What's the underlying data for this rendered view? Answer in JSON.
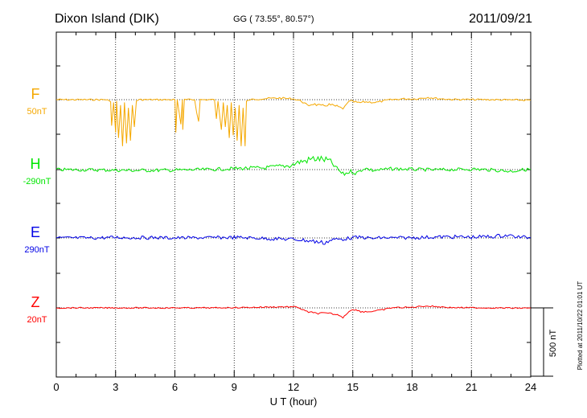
{
  "header": {
    "station": "Dixon Island (DIK)",
    "coords": "GG ( 73.55°,  80.57°)",
    "date": "2011/09/21"
  },
  "footer": {
    "plotted": "Plotted at 2011/10/22 01:01 UT"
  },
  "chart_data": {
    "type": "line",
    "xlabel": "U T (hour)",
    "xlim": [
      0,
      24
    ],
    "xticks": [
      "0",
      "3",
      "6",
      "9",
      "12",
      "15",
      "18",
      "21",
      "24"
    ],
    "scale_label": "500 nT",
    "scale_nT": 500,
    "grid": true,
    "series": [
      {
        "name": "F",
        "baseline_label": "50nT",
        "color": "#f5a800",
        "points": [
          [
            0,
            0
          ],
          [
            2.6,
            0
          ],
          [
            2.75,
            -8
          ],
          [
            2.8,
            -95
          ],
          [
            2.9,
            -10
          ],
          [
            3.0,
            -120
          ],
          [
            3.05,
            -5
          ],
          [
            3.15,
            -140
          ],
          [
            3.25,
            -20
          ],
          [
            3.35,
            -170
          ],
          [
            3.45,
            -10
          ],
          [
            3.55,
            -160
          ],
          [
            3.65,
            -30
          ],
          [
            3.75,
            -150
          ],
          [
            3.85,
            -20
          ],
          [
            3.95,
            -100
          ],
          [
            4.05,
            -5
          ],
          [
            4.2,
            0
          ],
          [
            6.0,
            0
          ],
          [
            6.05,
            -120
          ],
          [
            6.12,
            0
          ],
          [
            6.3,
            -90
          ],
          [
            6.38,
            0
          ],
          [
            6.4,
            -110
          ],
          [
            6.48,
            0
          ],
          [
            7.0,
            0
          ],
          [
            7.2,
            -80
          ],
          [
            7.28,
            0
          ],
          [
            8.0,
            0
          ],
          [
            8.1,
            -70
          ],
          [
            8.18,
            -5
          ],
          [
            8.35,
            -110
          ],
          [
            8.45,
            -10
          ],
          [
            8.55,
            -100
          ],
          [
            8.65,
            -20
          ],
          [
            8.75,
            -140
          ],
          [
            8.85,
            -10
          ],
          [
            8.95,
            -130
          ],
          [
            9.05,
            -30
          ],
          [
            9.15,
            -150
          ],
          [
            9.25,
            -20
          ],
          [
            9.35,
            -170
          ],
          [
            9.45,
            -30
          ],
          [
            9.55,
            -170
          ],
          [
            9.62,
            -5
          ],
          [
            9.8,
            0
          ],
          [
            10.5,
            4
          ],
          [
            11.3,
            6
          ],
          [
            12.0,
            3
          ],
          [
            12.4,
            -5
          ],
          [
            12.7,
            -22
          ],
          [
            13.0,
            -15
          ],
          [
            13.4,
            -24
          ],
          [
            13.8,
            -18
          ],
          [
            14.2,
            -25
          ],
          [
            14.5,
            -34
          ],
          [
            14.7,
            -12
          ],
          [
            14.9,
            -5
          ],
          [
            15.3,
            -12
          ],
          [
            15.6,
            -8
          ],
          [
            16.2,
            -10
          ],
          [
            16.8,
            -1
          ],
          [
            17.5,
            3
          ],
          [
            18.2,
            3
          ],
          [
            18.8,
            9
          ],
          [
            19.3,
            4
          ],
          [
            20,
            1
          ],
          [
            22,
            0
          ],
          [
            24,
            -2
          ]
        ]
      },
      {
        "name": "H",
        "baseline_label": "-290nT",
        "color": "#00e600",
        "points": [
          [
            0,
            0
          ],
          [
            2,
            -1
          ],
          [
            4,
            -3
          ],
          [
            6,
            -2
          ],
          [
            8,
            1
          ],
          [
            9.5,
            5
          ],
          [
            10.5,
            6
          ],
          [
            11.3,
            12
          ],
          [
            11.8,
            14
          ],
          [
            12.3,
            28
          ],
          [
            12.6,
            32
          ],
          [
            13,
            40
          ],
          [
            13.4,
            38
          ],
          [
            13.8,
            33
          ],
          [
            14.2,
            4
          ],
          [
            14.5,
            -18
          ],
          [
            14.9,
            -6
          ],
          [
            15.2,
            -13
          ],
          [
            15.6,
            6
          ],
          [
            16.0,
            -3
          ],
          [
            17,
            3
          ],
          [
            18,
            1
          ],
          [
            19,
            -1
          ],
          [
            20,
            0
          ],
          [
            21,
            2
          ],
          [
            22,
            -1
          ],
          [
            23,
            -6
          ],
          [
            23.5,
            -1
          ],
          [
            24,
            1
          ]
        ]
      },
      {
        "name": "E",
        "baseline_label": "290nT",
        "color": "#0000e6",
        "points": [
          [
            0,
            0
          ],
          [
            2,
            0
          ],
          [
            3,
            2
          ],
          [
            4,
            1
          ],
          [
            5,
            1
          ],
          [
            6,
            0
          ],
          [
            8,
            1
          ],
          [
            9,
            2
          ],
          [
            10,
            0
          ],
          [
            11,
            -3
          ],
          [
            12,
            -5
          ],
          [
            12.5,
            -8
          ],
          [
            13,
            -12
          ],
          [
            13.5,
            -18
          ],
          [
            14,
            -6
          ],
          [
            14.5,
            -4
          ],
          [
            15,
            1
          ],
          [
            15.5,
            2
          ],
          [
            16,
            -2
          ],
          [
            16.5,
            1
          ],
          [
            17,
            0
          ],
          [
            18,
            1
          ],
          [
            19,
            3
          ],
          [
            20,
            4
          ],
          [
            21,
            3
          ],
          [
            22,
            5
          ],
          [
            22.8,
            10
          ],
          [
            23.3,
            4
          ],
          [
            24,
            1
          ]
        ]
      },
      {
        "name": "Z",
        "baseline_label": "20nT",
        "color": "#ff0000",
        "points": [
          [
            0,
            0
          ],
          [
            8,
            0
          ],
          [
            10,
            2
          ],
          [
            11.5,
            4
          ],
          [
            12.2,
            3
          ],
          [
            12.6,
            -12
          ],
          [
            13,
            -19
          ],
          [
            13.5,
            -20
          ],
          [
            14,
            -22
          ],
          [
            14.3,
            -28
          ],
          [
            14.5,
            -33
          ],
          [
            14.8,
            -14
          ],
          [
            15,
            -5
          ],
          [
            15.4,
            -13
          ],
          [
            15.8,
            -14
          ],
          [
            16.4,
            -9
          ],
          [
            17,
            1
          ],
          [
            18,
            2
          ],
          [
            18.6,
            7
          ],
          [
            19.2,
            5
          ],
          [
            20,
            1
          ],
          [
            22,
            0
          ],
          [
            24,
            -1
          ]
        ]
      }
    ]
  }
}
